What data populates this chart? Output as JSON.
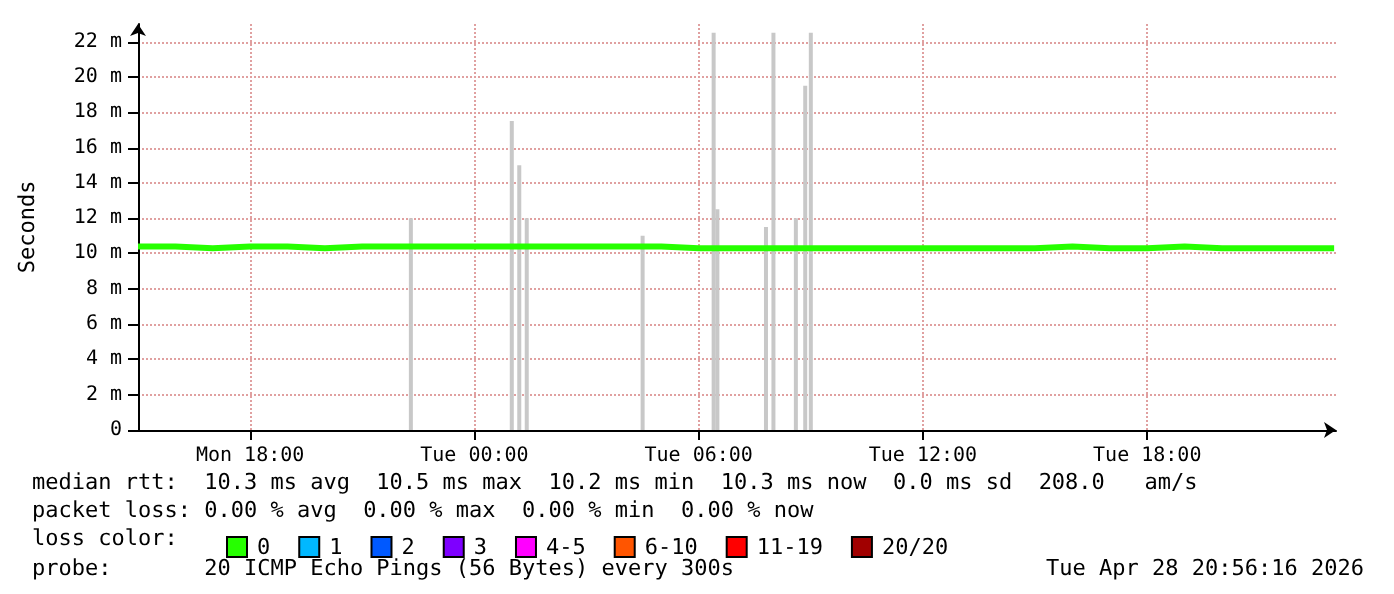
{
  "chart_data": {
    "type": "line",
    "ylabel": "Seconds",
    "legend_title": "loss color:",
    "legend": "bottom left",
    "grid": true,
    "marker": "none",
    "xlim": [
      "2026-04-27T15:00",
      "2026-04-28T23:03"
    ],
    "xticks": [
      {
        "value": "2026-04-27T18:00",
        "label": "Mon 18:00"
      },
      {
        "value": "2026-04-28T00:00",
        "label": "Tue 00:00"
      },
      {
        "value": "2026-04-28T06:00",
        "label": "Tue 06:00"
      },
      {
        "value": "2026-04-28T12:00",
        "label": "Tue 12:00"
      },
      {
        "value": "2026-04-28T18:00",
        "label": "Tue 18:00"
      }
    ],
    "ylim": [
      0,
      23
    ],
    "yticks": [
      {
        "value": 0,
        "label": "0"
      },
      {
        "value": 2,
        "label": "2 m"
      },
      {
        "value": 4,
        "label": "4 m"
      },
      {
        "value": 6,
        "label": "6 m"
      },
      {
        "value": 8,
        "label": "8 m"
      },
      {
        "value": 10,
        "label": "10 m"
      },
      {
        "value": 12,
        "label": "12 m"
      },
      {
        "value": 14,
        "label": "14 m"
      },
      {
        "value": 16,
        "label": "16 m"
      },
      {
        "value": 18,
        "label": "18 m"
      },
      {
        "value": 20,
        "label": "20 m"
      },
      {
        "value": 22,
        "label": "22 m"
      }
    ],
    "series": [
      {
        "type": "bar",
        "color": "#c8c8c8",
        "x": [
          "2026-04-27T22:18",
          "2026-04-28T01:00",
          "2026-04-28T01:12",
          "2026-04-28T01:24",
          "2026-04-28T04:30",
          "2026-04-28T06:24",
          "2026-04-28T06:30",
          "2026-04-28T07:48",
          "2026-04-28T08:00",
          "2026-04-28T08:36",
          "2026-04-28T08:51",
          "2026-04-28T09:00"
        ],
        "values": [
          12,
          17.5,
          15,
          12,
          11,
          22.5,
          12.5,
          11.5,
          22.5,
          12,
          19.5,
          22.5
        ]
      },
      {
        "name": "0",
        "color": "#26ff00",
        "x": [
          "2026-04-27T15:00",
          "2026-04-27T16:00",
          "2026-04-27T17:00",
          "2026-04-27T18:00",
          "2026-04-27T19:00",
          "2026-04-27T20:00",
          "2026-04-27T21:00",
          "2026-04-27T22:00",
          "2026-04-27T23:00",
          "2026-04-28T00:00",
          "2026-04-28T01:00",
          "2026-04-28T02:00",
          "2026-04-28T03:00",
          "2026-04-28T04:00",
          "2026-04-28T05:00",
          "2026-04-28T06:00",
          "2026-04-28T07:00",
          "2026-04-28T08:00",
          "2026-04-28T09:00",
          "2026-04-28T10:00",
          "2026-04-28T11:00",
          "2026-04-28T12:00",
          "2026-04-28T13:00",
          "2026-04-28T14:00",
          "2026-04-28T15:00",
          "2026-04-28T16:00",
          "2026-04-28T17:00",
          "2026-04-28T18:00",
          "2026-04-28T19:00",
          "2026-04-28T20:00",
          "2026-04-28T21:00",
          "2026-04-28T22:00",
          "2026-04-28T23:00"
        ],
        "values": [
          10.4,
          10.4,
          10.3,
          10.4,
          10.4,
          10.3,
          10.4,
          10.4,
          10.4,
          10.4,
          10.4,
          10.4,
          10.4,
          10.4,
          10.4,
          10.3,
          10.3,
          10.3,
          10.3,
          10.3,
          10.3,
          10.3,
          10.3,
          10.3,
          10.3,
          10.4,
          10.3,
          10.3,
          10.4,
          10.3,
          10.3,
          10.3,
          10.3
        ]
      },
      {
        "name": "1",
        "color": "#00b8ff",
        "values": [
          null
        ]
      },
      {
        "name": "2",
        "color": "#0059ff",
        "values": [
          null
        ]
      },
      {
        "name": "3",
        "color": "#7e00ff",
        "values": [
          null
        ]
      },
      {
        "name": "4-5",
        "color": "#ff00ff",
        "values": [
          null
        ]
      },
      {
        "name": "6-10",
        "color": "#ff5500",
        "values": [
          null
        ]
      },
      {
        "name": "11-19",
        "color": "#ff0000",
        "values": [
          null
        ]
      },
      {
        "name": "20/20",
        "color": "#a10000",
        "values": [
          null
        ]
      }
    ],
    "annotations": [
      "median rtt:  10.3 ms avg  10.5 ms max  10.2 ms min  10.3 ms now  0.0 ms sd  208.0   am/s",
      "packet loss: 0.00 % avg  0.00 % max  0.00 % min  0.00 % now",
      "probe:       20 ICMP Echo Pings (56 Bytes) every 300s",
      "Tue Apr 28 20:56:16 2026"
    ]
  }
}
